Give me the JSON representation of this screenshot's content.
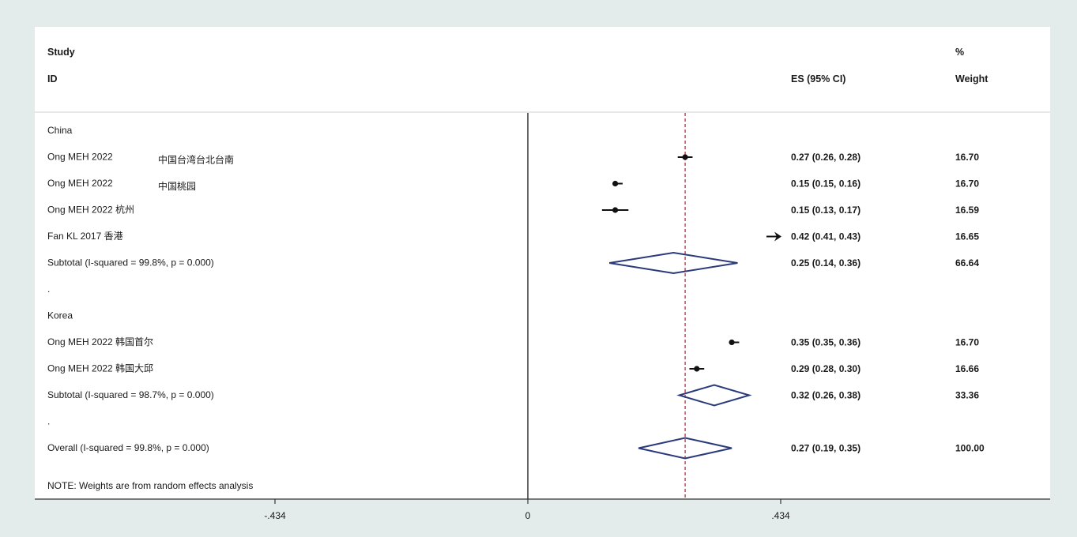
{
  "chart_data": {
    "type": "forest",
    "header": {
      "study_label_1": "Study",
      "study_label_2": "ID",
      "es_label": "ES (95% CI)",
      "weight_label_1": "%",
      "weight_label_2": "Weight"
    },
    "rows": [
      {
        "kind": "group",
        "label": "China"
      },
      {
        "kind": "study",
        "label": "Ong MEH 2022",
        "suffix": "中国台湾台北台南",
        "es": 0.27,
        "lo": 0.26,
        "hi": 0.28,
        "es_text": "0.27 (0.26, 0.28)",
        "weight": "16.70"
      },
      {
        "kind": "study",
        "label": "Ong MEH 2022",
        "suffix": "中国桃园",
        "es": 0.15,
        "lo": 0.15,
        "hi": 0.16,
        "es_text": "0.15 (0.15, 0.16)",
        "weight": "16.70"
      },
      {
        "kind": "study",
        "label": "Ong MEH 2022 杭州",
        "suffix": "",
        "es": 0.15,
        "lo": 0.13,
        "hi": 0.17,
        "es_text": "0.15 (0.13, 0.17)",
        "weight": "16.59"
      },
      {
        "kind": "study",
        "label": "Fan KL 2017 香港",
        "suffix": "",
        "es": 0.42,
        "lo": 0.41,
        "hi": 0.43,
        "es_text": "0.42 (0.41, 0.43)",
        "weight": "16.65",
        "clipped": true
      },
      {
        "kind": "subtotal",
        "label": "Subtotal  (I-squared = 99.8%, p = 0.000)",
        "es": 0.25,
        "lo": 0.14,
        "hi": 0.36,
        "es_text": "0.25 (0.14, 0.36)",
        "weight": "66.64"
      },
      {
        "kind": "spacer",
        "label": "."
      },
      {
        "kind": "group",
        "label": "Korea"
      },
      {
        "kind": "study",
        "label": "Ong MEH 2022 韩国首尔",
        "suffix": "",
        "es": 0.35,
        "lo": 0.35,
        "hi": 0.36,
        "es_text": "0.35 (0.35, 0.36)",
        "weight": "16.70"
      },
      {
        "kind": "study",
        "label": "Ong MEH 2022 韩国大邱",
        "suffix": "",
        "es": 0.29,
        "lo": 0.28,
        "hi": 0.3,
        "es_text": "0.29 (0.28, 0.30)",
        "weight": "16.66"
      },
      {
        "kind": "subtotal",
        "label": "Subtotal  (I-squared = 98.7%, p = 0.000)",
        "es": 0.32,
        "lo": 0.26,
        "hi": 0.38,
        "es_text": "0.32 (0.26, 0.38)",
        "weight": "33.36"
      },
      {
        "kind": "spacer",
        "label": "."
      },
      {
        "kind": "overall",
        "label": "Overall  (I-squared = 99.8%, p = 0.000)",
        "es": 0.27,
        "lo": 0.19,
        "hi": 0.35,
        "es_text": "0.27 (0.19, 0.35)",
        "weight": "100.00"
      }
    ],
    "note": "NOTE: Weights are from random effects analysis",
    "x_axis": {
      "min": -0.434,
      "max": 0.434,
      "ticks": [
        -0.434,
        0,
        0.434
      ],
      "tick_labels": [
        "-.434",
        "0",
        ".434"
      ]
    },
    "null_line": 0,
    "pooled_line": 0.27,
    "colors": {
      "diamond": "#2b3a7a",
      "pooled_line": "#b5333b",
      "marker": "#111111",
      "panel": "#ffffff",
      "background": "#e3ebeb"
    }
  }
}
